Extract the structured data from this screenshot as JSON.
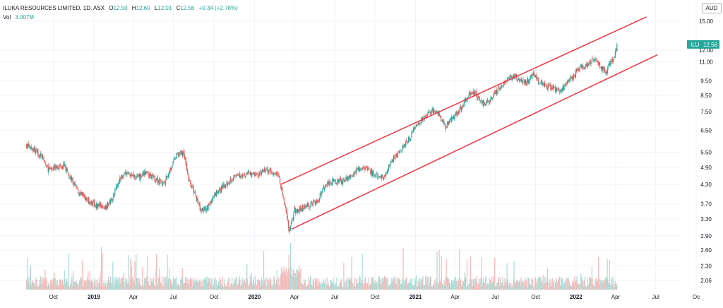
{
  "legend": {
    "title": "ILUKA RESOURCES LIMITED, 1D, ASX",
    "open_label": "O",
    "open": "12.50",
    "high_label": "H",
    "high": "12.60",
    "low_label": "L",
    "low": "12.01",
    "close_label": "C",
    "close": "12.56",
    "change": "+0.34 (+2.78%)",
    "vol_label": "Vol",
    "vol": "3.007M"
  },
  "currency": "AUD",
  "price_tag": {
    "symbol": "ILU",
    "value": "12.56"
  },
  "colors": {
    "up": "#26a69a",
    "down": "#ef5350",
    "channel": "#f23645",
    "tag_bg": "#26a69a",
    "grid": "#f0f3fa",
    "axis_text": "#131722"
  },
  "chart_data": {
    "type": "candlestick",
    "title": "ILUKA RESOURCES LIMITED, 1D, ASX",
    "y_scale": "log",
    "y_ticks": [
      "15.00",
      "12.00",
      "11.00",
      "9.50",
      "8.50",
      "7.50",
      "6.50",
      "5.50",
      "4.90",
      "4.30",
      "3.70",
      "3.30",
      "2.90",
      "2.60",
      "2.30",
      "2.06"
    ],
    "x_ticks": [
      "Oct",
      "2019",
      "Apr",
      "Jul",
      "Oct",
      "2020",
      "Apr",
      "Jul",
      "Oct",
      "2021",
      "Apr",
      "Jul",
      "Oct",
      "2022",
      "Apr",
      "Jul",
      "Oc"
    ],
    "x_tick_bold": [
      false,
      true,
      false,
      false,
      false,
      true,
      false,
      false,
      false,
      true,
      false,
      false,
      false,
      true,
      false,
      false,
      false
    ],
    "x_range": [
      "2018-08",
      "2022-10"
    ],
    "price_path": [
      [
        "2018-08-01",
        5.8
      ],
      [
        "2018-08-20",
        5.6
      ],
      [
        "2018-09-05",
        5.3
      ],
      [
        "2018-09-20",
        4.8
      ],
      [
        "2018-10-05",
        4.9
      ],
      [
        "2018-10-25",
        5.0
      ],
      [
        "2018-11-10",
        4.5
      ],
      [
        "2018-11-30",
        4.0
      ],
      [
        "2018-12-20",
        3.8
      ],
      [
        "2019-01-10",
        3.65
      ],
      [
        "2019-01-25",
        3.6
      ],
      [
        "2019-02-10",
        3.8
      ],
      [
        "2019-03-01",
        4.5
      ],
      [
        "2019-03-20",
        4.7
      ],
      [
        "2019-04-10",
        4.5
      ],
      [
        "2019-04-30",
        4.7
      ],
      [
        "2019-05-20",
        4.5
      ],
      [
        "2019-06-10",
        4.3
      ],
      [
        "2019-06-25",
        4.9
      ],
      [
        "2019-07-10",
        5.4
      ],
      [
        "2019-07-25",
        5.5
      ],
      [
        "2019-08-05",
        4.4
      ],
      [
        "2019-08-20",
        4.0
      ],
      [
        "2019-09-01",
        3.5
      ],
      [
        "2019-09-15",
        3.6
      ],
      [
        "2019-10-01",
        3.9
      ],
      [
        "2019-10-20",
        4.2
      ],
      [
        "2019-11-10",
        4.5
      ],
      [
        "2019-11-30",
        4.6
      ],
      [
        "2019-12-20",
        4.7
      ],
      [
        "2020-01-10",
        4.6
      ],
      [
        "2020-01-25",
        4.8
      ],
      [
        "2020-02-10",
        4.7
      ],
      [
        "2020-02-25",
        4.6
      ],
      [
        "2020-03-05",
        4.0
      ],
      [
        "2020-03-15",
        3.4
      ],
      [
        "2020-03-20",
        3.0
      ],
      [
        "2020-04-01",
        3.5
      ],
      [
        "2020-04-20",
        3.6
      ],
      [
        "2020-05-10",
        3.7
      ],
      [
        "2020-05-25",
        3.8
      ],
      [
        "2020-06-10",
        4.3
      ],
      [
        "2020-06-30",
        4.4
      ],
      [
        "2020-07-20",
        4.4
      ],
      [
        "2020-08-05",
        4.6
      ],
      [
        "2020-08-25",
        4.8
      ],
      [
        "2020-09-10",
        4.9
      ],
      [
        "2020-09-30",
        4.6
      ],
      [
        "2020-10-15",
        4.5
      ],
      [
        "2020-10-30",
        4.8
      ],
      [
        "2020-11-15",
        5.3
      ],
      [
        "2020-11-30",
        5.6
      ],
      [
        "2020-12-15",
        6.0
      ],
      [
        "2021-01-05",
        6.8
      ],
      [
        "2021-01-25",
        7.2
      ],
      [
        "2021-02-10",
        7.6
      ],
      [
        "2021-02-25",
        7.3
      ],
      [
        "2021-03-10",
        6.7
      ],
      [
        "2021-03-25",
        7.1
      ],
      [
        "2021-04-10",
        7.5
      ],
      [
        "2021-04-25",
        8.2
      ],
      [
        "2021-05-10",
        8.8
      ],
      [
        "2021-05-25",
        8.3
      ],
      [
        "2021-06-10",
        7.9
      ],
      [
        "2021-06-25",
        8.4
      ],
      [
        "2021-07-10",
        9.0
      ],
      [
        "2021-07-25",
        9.4
      ],
      [
        "2021-08-10",
        9.9
      ],
      [
        "2021-08-25",
        9.6
      ],
      [
        "2021-09-10",
        9.3
      ],
      [
        "2021-09-25",
        10.1
      ],
      [
        "2021-10-10",
        9.4
      ],
      [
        "2021-10-25",
        9.1
      ],
      [
        "2021-11-10",
        9.0
      ],
      [
        "2021-11-25",
        8.7
      ],
      [
        "2021-12-10",
        9.3
      ],
      [
        "2021-12-25",
        9.8
      ],
      [
        "2022-01-10",
        10.5
      ],
      [
        "2022-01-25",
        10.7
      ],
      [
        "2022-02-10",
        11.3
      ],
      [
        "2022-02-25",
        10.6
      ],
      [
        "2022-03-10",
        10.2
      ],
      [
        "2022-03-20",
        10.9
      ],
      [
        "2022-03-30",
        11.4
      ],
      [
        "2022-04-05",
        12.56
      ]
    ],
    "volume_max_label": "",
    "channel_upper": [
      [
        "2020-03-01",
        4.3
      ],
      [
        "2022-06-10",
        15.5
      ]
    ],
    "channel_lower": [
      [
        "2020-03-25",
        3.05
      ],
      [
        "2022-07-05",
        11.6
      ]
    ]
  }
}
